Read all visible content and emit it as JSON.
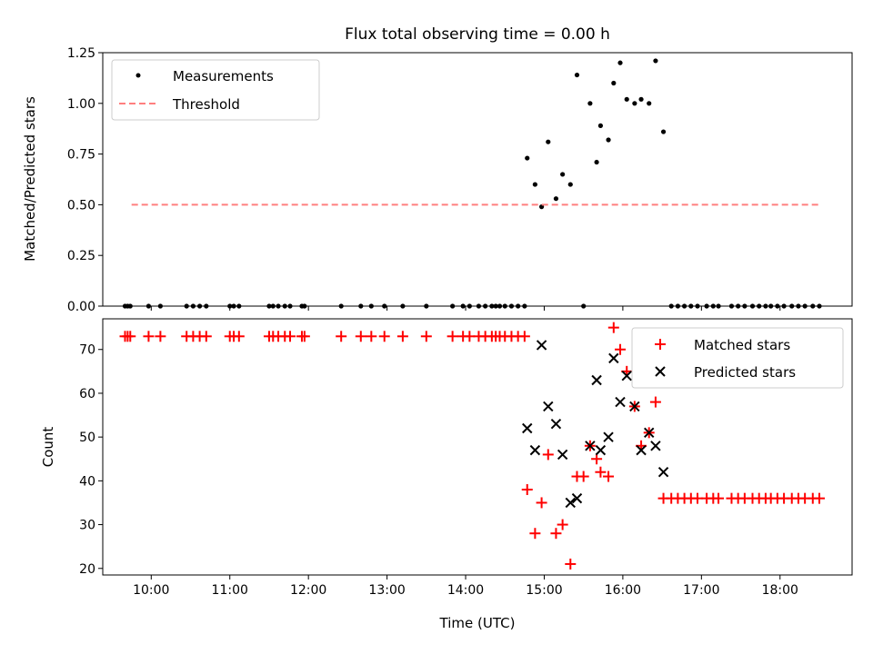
{
  "chart_data": [
    {
      "type": "scatter",
      "title": "Flux total observing time = 0.00 h",
      "ylabel": "Matched/Predicted stars",
      "xlabel": "",
      "xlim": [
        "09:23",
        "18:55"
      ],
      "ylim": [
        0,
        1.25
      ],
      "y_ticks": [
        "0.00",
        "0.25",
        "0.50",
        "0.75",
        "1.00",
        "1.25"
      ],
      "x_tick_labels_shown": false,
      "legend": {
        "placement": "top-left",
        "entries": [
          "Measurements",
          "Threshold"
        ]
      },
      "series": [
        {
          "name": "Measurements",
          "marker": "dot",
          "color": "#000000",
          "points": [
            [
              "09:40",
              0
            ],
            [
              "09:42",
              0
            ],
            [
              "09:44",
              0
            ],
            [
              "09:58",
              0
            ],
            [
              "10:07",
              0
            ],
            [
              "10:27",
              0
            ],
            [
              "10:32",
              0
            ],
            [
              "10:37",
              0
            ],
            [
              "10:42",
              0
            ],
            [
              "11:00",
              0
            ],
            [
              "11:03",
              0
            ],
            [
              "11:07",
              0
            ],
            [
              "11:30",
              0
            ],
            [
              "11:33",
              0
            ],
            [
              "11:37",
              0
            ],
            [
              "11:42",
              0
            ],
            [
              "11:46",
              0
            ],
            [
              "11:55",
              0
            ],
            [
              "11:57",
              0
            ],
            [
              "12:25",
              0
            ],
            [
              "12:40",
              0
            ],
            [
              "12:48",
              0
            ],
            [
              "12:58",
              0
            ],
            [
              "13:12",
              0
            ],
            [
              "13:30",
              0
            ],
            [
              "13:50",
              0
            ],
            [
              "13:58",
              0
            ],
            [
              "14:03",
              0
            ],
            [
              "14:10",
              0
            ],
            [
              "14:15",
              0
            ],
            [
              "14:20",
              0
            ],
            [
              "14:23",
              0
            ],
            [
              "14:26",
              0
            ],
            [
              "14:30",
              0
            ],
            [
              "14:35",
              0
            ],
            [
              "14:40",
              0
            ],
            [
              "14:45",
              0
            ],
            [
              "14:47",
              0.73
            ],
            [
              "14:53",
              0.6
            ],
            [
              "14:58",
              0.49
            ],
            [
              "15:03",
              0.81
            ],
            [
              "15:09",
              0.53
            ],
            [
              "15:14",
              0.65
            ],
            [
              "15:20",
              0.6
            ],
            [
              "15:25",
              1.14
            ],
            [
              "15:30",
              0
            ],
            [
              "15:35",
              1.0
            ],
            [
              "15:40",
              0.71
            ],
            [
              "15:43",
              0.89
            ],
            [
              "15:49",
              0.82
            ],
            [
              "15:53",
              1.1
            ],
            [
              "15:58",
              1.2
            ],
            [
              "16:03",
              1.02
            ],
            [
              "16:09",
              1.0
            ],
            [
              "16:14",
              1.02
            ],
            [
              "16:20",
              1.0
            ],
            [
              "16:25",
              1.21
            ],
            [
              "16:31",
              0.86
            ],
            [
              "16:37",
              0
            ],
            [
              "16:42",
              0
            ],
            [
              "16:47",
              0
            ],
            [
              "16:52",
              0
            ],
            [
              "16:57",
              0
            ],
            [
              "17:04",
              0
            ],
            [
              "17:09",
              0
            ],
            [
              "17:13",
              0
            ],
            [
              "17:23",
              0
            ],
            [
              "17:28",
              0
            ],
            [
              "17:33",
              0
            ],
            [
              "17:39",
              0
            ],
            [
              "17:44",
              0
            ],
            [
              "17:49",
              0
            ],
            [
              "17:53",
              0
            ],
            [
              "17:58",
              0
            ],
            [
              "18:03",
              0
            ],
            [
              "18:09",
              0
            ],
            [
              "18:14",
              0
            ],
            [
              "18:19",
              0
            ],
            [
              "18:25",
              0
            ],
            [
              "18:30",
              0
            ]
          ]
        },
        {
          "name": "Threshold",
          "style": "dashed",
          "color": "#ff7f7f",
          "points": [
            [
              "09:45",
              0.5
            ],
            [
              "18:30",
              0.5
            ]
          ]
        }
      ]
    },
    {
      "type": "scatter",
      "title": "",
      "ylabel": "Count",
      "xlabel": "Time (UTC)",
      "xlim": [
        "09:23",
        "18:55"
      ],
      "ylim": [
        18.5,
        77
      ],
      "y_ticks": [
        "20",
        "30",
        "40",
        "50",
        "60",
        "70"
      ],
      "x_ticks": [
        "10:00",
        "11:00",
        "12:00",
        "13:00",
        "14:00",
        "15:00",
        "16:00",
        "17:00",
        "18:00"
      ],
      "legend": {
        "placement": "top-right",
        "entries": [
          "Matched stars",
          "Predicted stars"
        ]
      },
      "series": [
        {
          "name": "Matched stars",
          "marker": "plus",
          "color": "#ff0000",
          "points": [
            [
              "09:40",
              73
            ],
            [
              "09:42",
              73
            ],
            [
              "09:44",
              73
            ],
            [
              "09:58",
              73
            ],
            [
              "10:07",
              73
            ],
            [
              "10:27",
              73
            ],
            [
              "10:32",
              73
            ],
            [
              "10:37",
              73
            ],
            [
              "10:42",
              73
            ],
            [
              "11:00",
              73
            ],
            [
              "11:03",
              73
            ],
            [
              "11:07",
              73
            ],
            [
              "11:30",
              73
            ],
            [
              "11:33",
              73
            ],
            [
              "11:37",
              73
            ],
            [
              "11:42",
              73
            ],
            [
              "11:46",
              73
            ],
            [
              "11:55",
              73
            ],
            [
              "11:57",
              73
            ],
            [
              "12:25",
              73
            ],
            [
              "12:40",
              73
            ],
            [
              "12:48",
              73
            ],
            [
              "12:58",
              73
            ],
            [
              "13:12",
              73
            ],
            [
              "13:30",
              73
            ],
            [
              "13:50",
              73
            ],
            [
              "13:58",
              73
            ],
            [
              "14:03",
              73
            ],
            [
              "14:10",
              73
            ],
            [
              "14:15",
              73
            ],
            [
              "14:20",
              73
            ],
            [
              "14:23",
              73
            ],
            [
              "14:26",
              73
            ],
            [
              "14:30",
              73
            ],
            [
              "14:35",
              73
            ],
            [
              "14:40",
              73
            ],
            [
              "14:45",
              73
            ],
            [
              "14:47",
              38
            ],
            [
              "14:53",
              28
            ],
            [
              "14:58",
              35
            ],
            [
              "15:03",
              46
            ],
            [
              "15:09",
              28
            ],
            [
              "15:14",
              30
            ],
            [
              "15:20",
              21
            ],
            [
              "15:25",
              41
            ],
            [
              "15:30",
              41
            ],
            [
              "15:35",
              48
            ],
            [
              "15:40",
              45
            ],
            [
              "15:43",
              42
            ],
            [
              "15:49",
              41
            ],
            [
              "15:53",
              75
            ],
            [
              "15:58",
              70
            ],
            [
              "16:03",
              65
            ],
            [
              "16:09",
              57
            ],
            [
              "16:14",
              48
            ],
            [
              "16:20",
              51
            ],
            [
              "16:25",
              58
            ],
            [
              "16:31",
              36
            ],
            [
              "16:37",
              36
            ],
            [
              "16:42",
              36
            ],
            [
              "16:47",
              36
            ],
            [
              "16:52",
              36
            ],
            [
              "16:57",
              36
            ],
            [
              "17:04",
              36
            ],
            [
              "17:09",
              36
            ],
            [
              "17:13",
              36
            ],
            [
              "17:23",
              36
            ],
            [
              "17:28",
              36
            ],
            [
              "17:33",
              36
            ],
            [
              "17:39",
              36
            ],
            [
              "17:44",
              36
            ],
            [
              "17:49",
              36
            ],
            [
              "17:53",
              36
            ],
            [
              "17:58",
              36
            ],
            [
              "18:03",
              36
            ],
            [
              "18:09",
              36
            ],
            [
              "18:14",
              36
            ],
            [
              "18:19",
              36
            ],
            [
              "18:25",
              36
            ],
            [
              "18:30",
              36
            ]
          ]
        },
        {
          "name": "Predicted stars",
          "marker": "x",
          "color": "#000000",
          "points": [
            [
              "14:47",
              52
            ],
            [
              "14:53",
              47
            ],
            [
              "14:58",
              71
            ],
            [
              "15:03",
              57
            ],
            [
              "15:09",
              53
            ],
            [
              "15:14",
              46
            ],
            [
              "15:20",
              35
            ],
            [
              "15:25",
              36
            ],
            [
              "15:35",
              48
            ],
            [
              "15:40",
              63
            ],
            [
              "15:43",
              47
            ],
            [
              "15:49",
              50
            ],
            [
              "15:53",
              68
            ],
            [
              "15:58",
              58
            ],
            [
              "16:03",
              64
            ],
            [
              "16:09",
              57
            ],
            [
              "16:14",
              47
            ],
            [
              "16:20",
              51
            ],
            [
              "16:25",
              48
            ],
            [
              "16:31",
              42
            ]
          ]
        }
      ]
    }
  ]
}
